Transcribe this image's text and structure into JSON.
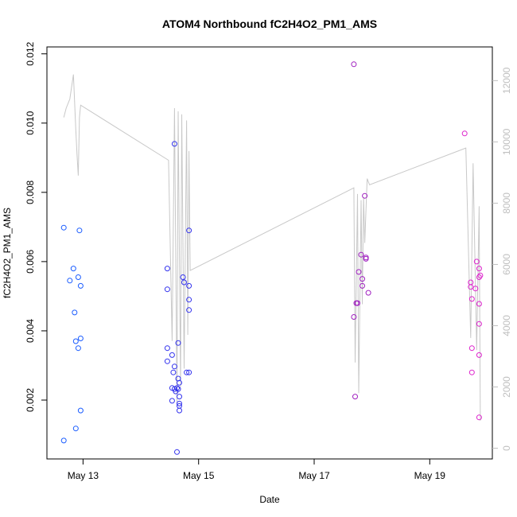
{
  "chart_data": {
    "type": "scatter",
    "title": "ATOM4 Northbound fC2H4O2_PM1_AMS",
    "xlabel": "Date",
    "ylabel": "fC2H4O2_PM1_AMS",
    "x_ticks": [
      "May 13",
      "May 15",
      "May 17",
      "May 19"
    ],
    "y_ticks": [
      "0.002",
      "0.004",
      "0.006",
      "0.008",
      "0.010",
      "0.012"
    ],
    "y_right_ticks": [
      "0",
      "2000",
      "4000",
      "6000",
      "8000",
      "10000",
      "12000"
    ],
    "xlim": [
      "2016-05-12 09:00",
      "2016-05-20 02:00"
    ],
    "ylim": [
      0.0003,
      0.0122
    ],
    "y_right_lim": [
      -350,
      13100
    ],
    "grid": false,
    "legend": "none",
    "points": [
      {
        "t": "2016-05-12 16:00",
        "y": 0.00698,
        "c": "#1a5cff"
      },
      {
        "t": "2016-05-12 16:00",
        "y": 0.00083,
        "c": "#1a5cff"
      },
      {
        "t": "2016-05-12 18:30",
        "y": 0.00545,
        "c": "#1a5cff"
      },
      {
        "t": "2016-05-12 20:00",
        "y": 0.0058,
        "c": "#1a5cff"
      },
      {
        "t": "2016-05-12 20:30",
        "y": 0.00453,
        "c": "#1a5cff"
      },
      {
        "t": "2016-05-12 21:00",
        "y": 0.0037,
        "c": "#1a5cff"
      },
      {
        "t": "2016-05-12 21:00",
        "y": 0.00118,
        "c": "#1a5cff"
      },
      {
        "t": "2016-05-12 22:00",
        "y": 0.00555,
        "c": "#1a5cff"
      },
      {
        "t": "2016-05-12 22:00",
        "y": 0.0035,
        "c": "#1a5cff"
      },
      {
        "t": "2016-05-12 22:30",
        "y": 0.0069,
        "c": "#1a5cff"
      },
      {
        "t": "2016-05-12 23:00",
        "y": 0.0053,
        "c": "#1a5cff"
      },
      {
        "t": "2016-05-12 23:00",
        "y": 0.00378,
        "c": "#1a5cff"
      },
      {
        "t": "2016-05-12 23:00",
        "y": 0.0017,
        "c": "#1a5cff"
      },
      {
        "t": "2016-05-14 11:00",
        "y": 0.0058,
        "c": "#3333ee"
      },
      {
        "t": "2016-05-14 11:00",
        "y": 0.0052,
        "c": "#3333ee"
      },
      {
        "t": "2016-05-14 11:00",
        "y": 0.0035,
        "c": "#3333ee"
      },
      {
        "t": "2016-05-14 11:00",
        "y": 0.00312,
        "c": "#3333ee"
      },
      {
        "t": "2016-05-14 13:00",
        "y": 0.0033,
        "c": "#3333ee"
      },
      {
        "t": "2016-05-14 13:00",
        "y": 0.00235,
        "c": "#3333ee"
      },
      {
        "t": "2016-05-14 13:00",
        "y": 0.00198,
        "c": "#3333ee"
      },
      {
        "t": "2016-05-14 13:30",
        "y": 0.0028,
        "c": "#3333ee"
      },
      {
        "t": "2016-05-14 14:00",
        "y": 0.0094,
        "c": "#3333ee"
      },
      {
        "t": "2016-05-14 14:00",
        "y": 0.00297,
        "c": "#3333ee"
      },
      {
        "t": "2016-05-14 14:00",
        "y": 0.00232,
        "c": "#3333ee"
      },
      {
        "t": "2016-05-14 14:30",
        "y": 0.00225,
        "c": "#3333ee"
      },
      {
        "t": "2016-05-14 15:00",
        "y": 0.00235,
        "c": "#3333ee"
      },
      {
        "t": "2016-05-14 15:00",
        "y": 0.0005,
        "c": "#3333ee"
      },
      {
        "t": "2016-05-14 15:30",
        "y": 0.00365,
        "c": "#3333ee"
      },
      {
        "t": "2016-05-14 15:30",
        "y": 0.00262,
        "c": "#3333ee"
      },
      {
        "t": "2016-05-14 15:30",
        "y": 0.00232,
        "c": "#3333ee"
      },
      {
        "t": "2016-05-14 16:00",
        "y": 0.0025,
        "c": "#3333ee"
      },
      {
        "t": "2016-05-14 16:00",
        "y": 0.0021,
        "c": "#3333ee"
      },
      {
        "t": "2016-05-14 16:00",
        "y": 0.0019,
        "c": "#3333ee"
      },
      {
        "t": "2016-05-14 16:00",
        "y": 0.00183,
        "c": "#3333ee"
      },
      {
        "t": "2016-05-14 16:00",
        "y": 0.0017,
        "c": "#3333ee"
      },
      {
        "t": "2016-05-14 17:30",
        "y": 0.00555,
        "c": "#3333ee"
      },
      {
        "t": "2016-05-14 18:00",
        "y": 0.0054,
        "c": "#3333ee"
      },
      {
        "t": "2016-05-14 19:00",
        "y": 0.0028,
        "c": "#3333ee"
      },
      {
        "t": "2016-05-14 20:00",
        "y": 0.0069,
        "c": "#3333ee"
      },
      {
        "t": "2016-05-14 20:00",
        "y": 0.0053,
        "c": "#3333ee"
      },
      {
        "t": "2016-05-14 20:00",
        "y": 0.0049,
        "c": "#3333ee"
      },
      {
        "t": "2016-05-14 20:00",
        "y": 0.0046,
        "c": "#3333ee"
      },
      {
        "t": "2016-05-14 20:00",
        "y": 0.0028,
        "c": "#3333ee"
      },
      {
        "t": "2016-05-17 16:30",
        "y": 0.0117,
        "c": "#a020c0"
      },
      {
        "t": "2016-05-17 16:30",
        "y": 0.0044,
        "c": "#a020c0"
      },
      {
        "t": "2016-05-17 17:00",
        "y": 0.0021,
        "c": "#a020c0"
      },
      {
        "t": "2016-05-17 17:30",
        "y": 0.0048,
        "c": "#a020c0"
      },
      {
        "t": "2016-05-17 18:00",
        "y": 0.0048,
        "c": "#a020c0"
      },
      {
        "t": "2016-05-17 18:30",
        "y": 0.0057,
        "c": "#a020c0"
      },
      {
        "t": "2016-05-17 19:30",
        "y": 0.0062,
        "c": "#a020c0"
      },
      {
        "t": "2016-05-17 20:00",
        "y": 0.0055,
        "c": "#a020c0"
      },
      {
        "t": "2016-05-17 20:00",
        "y": 0.0053,
        "c": "#a020c0"
      },
      {
        "t": "2016-05-17 21:00",
        "y": 0.0079,
        "c": "#a020c0"
      },
      {
        "t": "2016-05-17 21:30",
        "y": 0.00612,
        "c": "#a020c0"
      },
      {
        "t": "2016-05-17 21:30",
        "y": 0.00608,
        "c": "#a020c0"
      },
      {
        "t": "2016-05-17 22:30",
        "y": 0.0051,
        "c": "#a020c0"
      },
      {
        "t": "2016-05-19 14:30",
        "y": 0.0097,
        "c": "#dd22cc"
      },
      {
        "t": "2016-05-19 17:00",
        "y": 0.0054,
        "c": "#dd22cc"
      },
      {
        "t": "2016-05-19 17:00",
        "y": 0.00527,
        "c": "#dd22cc"
      },
      {
        "t": "2016-05-19 17:30",
        "y": 0.00492,
        "c": "#dd22cc"
      },
      {
        "t": "2016-05-19 17:30",
        "y": 0.0035,
        "c": "#dd22cc"
      },
      {
        "t": "2016-05-19 17:30",
        "y": 0.0028,
        "c": "#dd22cc"
      },
      {
        "t": "2016-05-19 19:00",
        "y": 0.00522,
        "c": "#dd22cc"
      },
      {
        "t": "2016-05-19 19:30",
        "y": 0.006,
        "c": "#dd22cc"
      },
      {
        "t": "2016-05-19 20:30",
        "y": 0.0058,
        "c": "#dd22cc"
      },
      {
        "t": "2016-05-19 20:30",
        "y": 0.00555,
        "c": "#dd22cc"
      },
      {
        "t": "2016-05-19 20:30",
        "y": 0.00478,
        "c": "#dd22cc"
      },
      {
        "t": "2016-05-19 20:30",
        "y": 0.0042,
        "c": "#dd22cc"
      },
      {
        "t": "2016-05-19 20:30",
        "y": 0.0033,
        "c": "#dd22cc"
      },
      {
        "t": "2016-05-19 20:30",
        "y": 0.0015,
        "c": "#dd22cc"
      },
      {
        "t": "2016-05-19 21:00",
        "y": 0.0056,
        "c": "#dd22cc"
      }
    ],
    "secondary_line": {
      "color": "#c8c8c8",
      "axis": "right",
      "points": [
        {
          "t": "2016-05-12 16:00",
          "v": 10800
        },
        {
          "t": "2016-05-12 17:00",
          "v": 11100
        },
        {
          "t": "2016-05-12 18:30",
          "v": 11400
        },
        {
          "t": "2016-05-12 20:00",
          "v": 12200
        },
        {
          "t": "2016-05-12 21:00",
          "v": 10400
        },
        {
          "t": "2016-05-12 21:30",
          "v": 9600
        },
        {
          "t": "2016-05-12 22:00",
          "v": 8900
        },
        {
          "t": "2016-05-12 22:30",
          "v": 10800
        },
        {
          "t": "2016-05-12 23:00",
          "v": 11200
        },
        {
          "t": "2016-05-14 11:30",
          "v": 9400
        },
        {
          "t": "2016-05-14 13:00",
          "v": 3500
        },
        {
          "t": "2016-05-14 14:00",
          "v": 11100
        },
        {
          "t": "2016-05-14 15:00",
          "v": 1400
        },
        {
          "t": "2016-05-14 15:30",
          "v": 11000
        },
        {
          "t": "2016-05-14 16:30",
          "v": 2000
        },
        {
          "t": "2016-05-14 17:00",
          "v": 10900
        },
        {
          "t": "2016-05-14 18:00",
          "v": 2600
        },
        {
          "t": "2016-05-14 19:00",
          "v": 10700
        },
        {
          "t": "2016-05-14 19:30",
          "v": 3700
        },
        {
          "t": "2016-05-14 20:00",
          "v": 9700
        },
        {
          "t": "2016-05-14 20:30",
          "v": 5800
        },
        {
          "t": "2016-05-17 16:30",
          "v": 8500
        },
        {
          "t": "2016-05-17 17:00",
          "v": 2800
        },
        {
          "t": "2016-05-17 18:00",
          "v": 8300
        },
        {
          "t": "2016-05-17 18:30",
          "v": 1800
        },
        {
          "t": "2016-05-17 19:30",
          "v": 8100
        },
        {
          "t": "2016-05-17 20:00",
          "v": 4700
        },
        {
          "t": "2016-05-17 20:30",
          "v": 8200
        },
        {
          "t": "2016-05-17 21:00",
          "v": 6700
        },
        {
          "t": "2016-05-17 22:00",
          "v": 8800
        },
        {
          "t": "2016-05-17 23:00",
          "v": 8600
        },
        {
          "t": "2016-05-19 15:00",
          "v": 9800
        },
        {
          "t": "2016-05-19 17:00",
          "v": 3600
        },
        {
          "t": "2016-05-19 18:00",
          "v": 9300
        },
        {
          "t": "2016-05-19 19:30",
          "v": 3200
        },
        {
          "t": "2016-05-19 20:30",
          "v": 7900
        },
        {
          "t": "2016-05-19 21:00",
          "v": 900
        }
      ]
    }
  }
}
